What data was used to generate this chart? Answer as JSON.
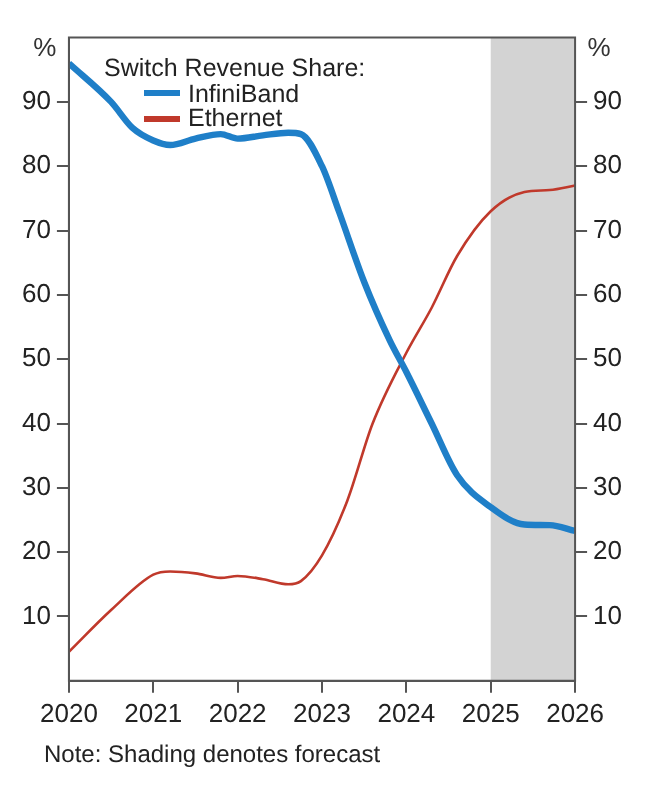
{
  "chart_data": {
    "type": "line",
    "legend_title": "Switch Revenue Share:",
    "ylabel": "%",
    "y2label": "%",
    "xlim": [
      2020,
      2026
    ],
    "xticks": [
      2020,
      2021,
      2022,
      2023,
      2024,
      2025,
      2026
    ],
    "ylim": [
      0,
      100
    ],
    "yticks": [
      10,
      20,
      30,
      40,
      50,
      60,
      70,
      80,
      90
    ],
    "y2lim": [
      0,
      100
    ],
    "y2ticks": [
      10,
      20,
      30,
      40,
      50,
      60,
      70,
      80,
      90
    ],
    "series": [
      {
        "name": "InfiniBand",
        "color": "#1f7fc8",
        "x": [
          2020,
          2020.5,
          2020.75,
          2021,
          2021.2,
          2021.5,
          2021.8,
          2022,
          2022.3,
          2022.6,
          2022.75,
          2023,
          2023.2,
          2023.5,
          2023.8,
          2024,
          2024.3,
          2024.6,
          2025,
          2025.4,
          2025.7,
          2026
        ],
        "values": [
          96,
          90,
          86,
          84,
          83.3,
          84.3,
          85,
          84.3,
          84.8,
          85.2,
          85,
          80,
          73,
          62,
          53,
          48,
          40,
          32,
          27,
          24.3,
          24.2,
          23.3
        ]
      },
      {
        "name": "Ethernet",
        "color": "#c0392b",
        "x": [
          2020,
          2020.5,
          2021,
          2021.2,
          2021.5,
          2021.8,
          2022,
          2022.3,
          2022.6,
          2022.75,
          2023,
          2023.3,
          2023.6,
          2024,
          2024.3,
          2024.6,
          2025,
          2025.4,
          2025.7,
          2026
        ],
        "values": [
          4.5,
          11,
          16.5,
          17,
          16.7,
          16,
          16.3,
          15.8,
          15,
          15.5,
          19.5,
          28,
          40,
          51,
          58,
          66,
          73,
          76,
          76.3,
          77
        ]
      }
    ],
    "bands": [
      {
        "axis": "x",
        "from": 2025,
        "to": 2026,
        "color": "#d3d3d3"
      }
    ],
    "legend": "top left",
    "grid": false,
    "annotations": [
      "Note: Shading denotes forecast"
    ]
  }
}
